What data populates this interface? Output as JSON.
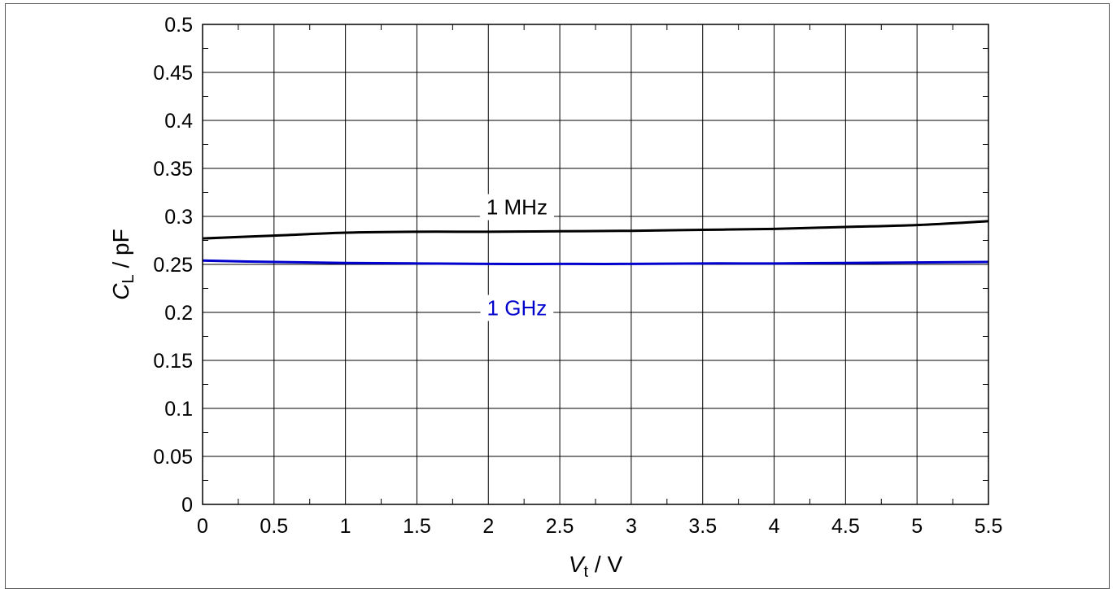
{
  "chart_data": {
    "type": "line",
    "title": "",
    "xlabel": {
      "main": "V",
      "sub": "t",
      "unit": " / V"
    },
    "ylabel": {
      "main": "C",
      "sub": "L",
      "unit": " / pF"
    },
    "xlim": [
      0,
      5.5
    ],
    "ylim": [
      0,
      0.5
    ],
    "grid": true,
    "x_ticks": [
      0,
      0.5,
      1,
      1.5,
      2,
      2.5,
      3,
      3.5,
      4,
      4.5,
      5,
      5.5
    ],
    "x_tick_labels": [
      "0",
      "0.5",
      "1",
      "1.5",
      "2",
      "2.5",
      "3",
      "3.5",
      "4",
      "4.5",
      "5",
      "5.5"
    ],
    "y_ticks": [
      0,
      0.05,
      0.1,
      0.15,
      0.2,
      0.25,
      0.3,
      0.35,
      0.4,
      0.45,
      0.5
    ],
    "y_tick_labels": [
      "0",
      "0.05",
      "0.1",
      "0.15",
      "0.2",
      "0.25",
      "0.3",
      "0.35",
      "0.4",
      "0.45",
      "0.5"
    ],
    "series": [
      {
        "name": "1 MHz",
        "color": "#000000",
        "x": [
          0,
          0.5,
          1,
          1.5,
          2,
          2.5,
          3,
          3.5,
          4,
          4.5,
          5,
          5.5
        ],
        "y": [
          0.277,
          0.28,
          0.283,
          0.284,
          0.284,
          0.2845,
          0.285,
          0.286,
          0.287,
          0.289,
          0.291,
          0.295
        ],
        "label_at": [
          2.2,
          0.302
        ]
      },
      {
        "name": "1 GHz",
        "color": "#0000cc",
        "x": [
          0,
          0.5,
          1,
          1.5,
          2,
          2.5,
          3,
          3.5,
          4,
          4.5,
          5,
          5.5
        ],
        "y": [
          0.254,
          0.2525,
          0.2515,
          0.251,
          0.2505,
          0.2505,
          0.2505,
          0.251,
          0.251,
          0.2515,
          0.252,
          0.2525
        ],
        "label_at": [
          2.2,
          0.197
        ]
      }
    ]
  }
}
